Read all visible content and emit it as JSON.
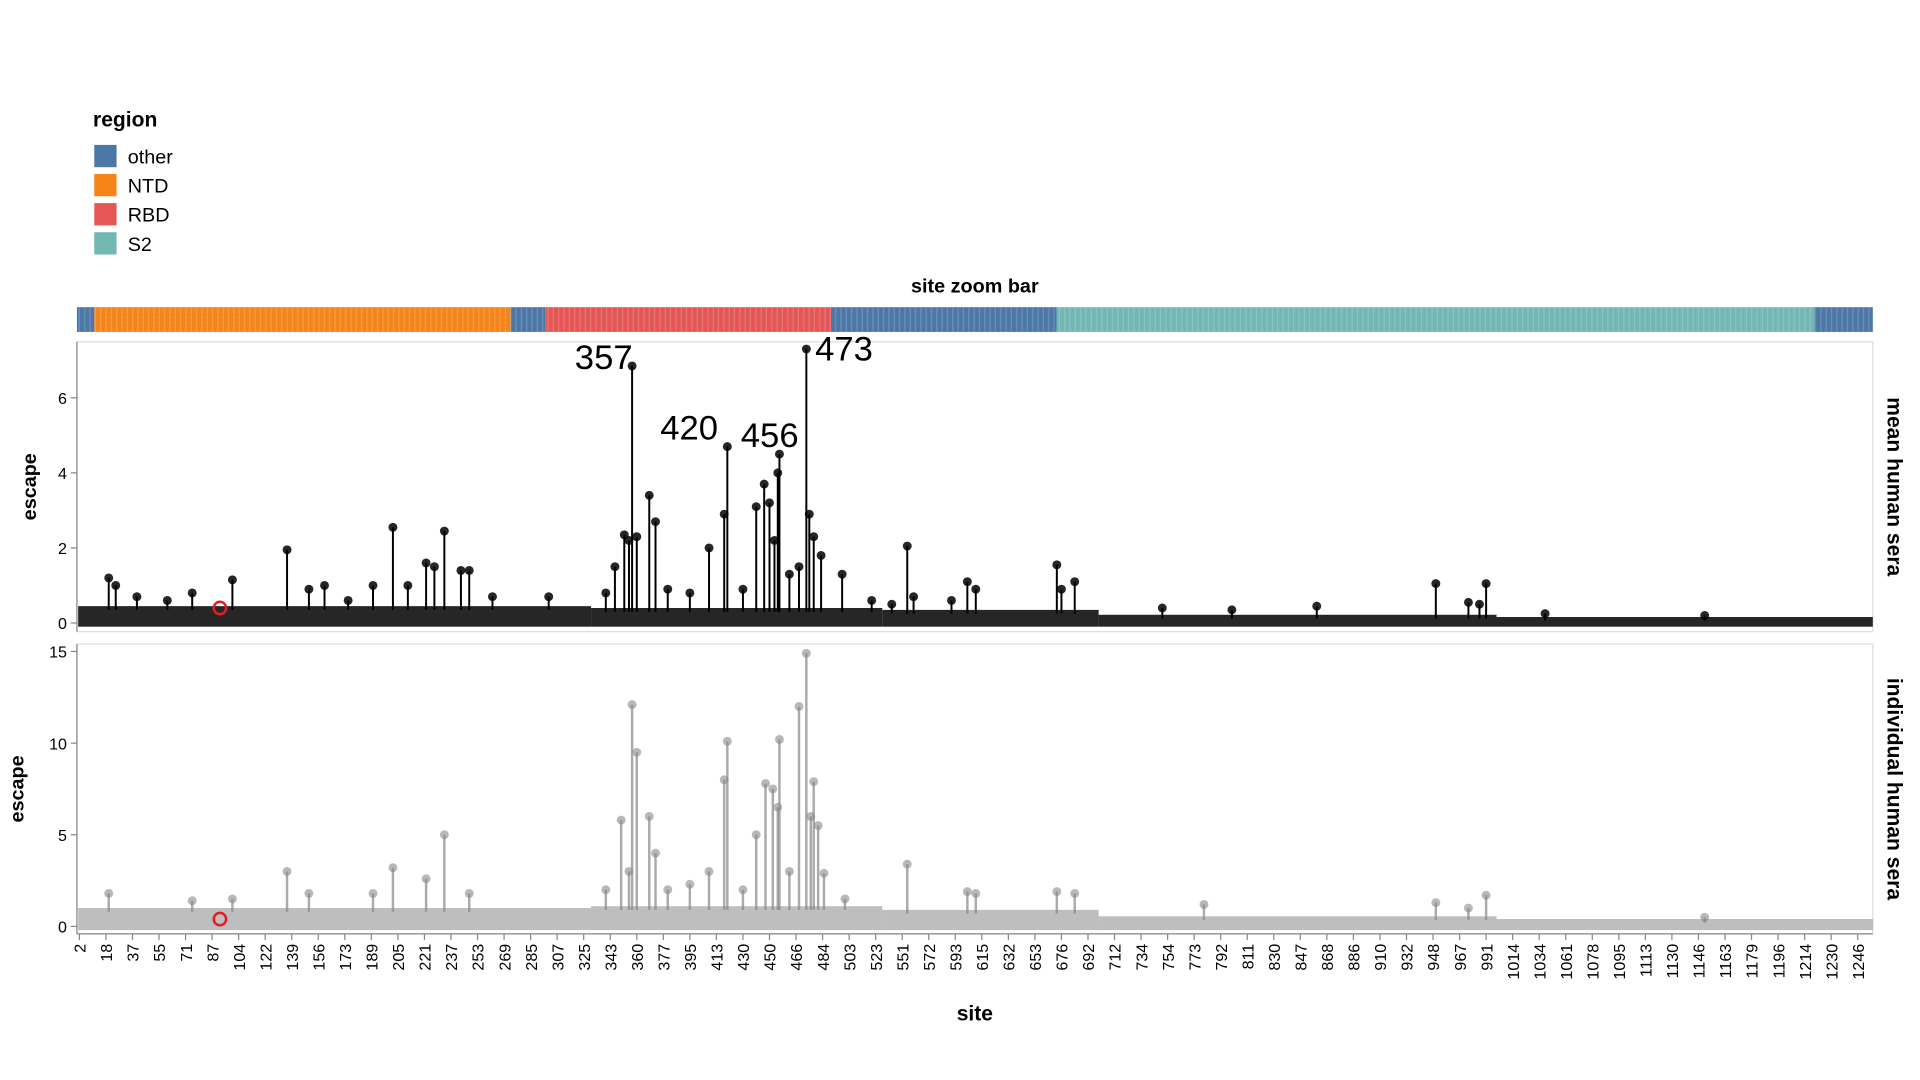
{
  "legend": {
    "title": "region",
    "items": [
      {
        "label": "other",
        "color": "#4c78a8"
      },
      {
        "label": "NTD",
        "color": "#f58518"
      },
      {
        "label": "RBD",
        "color": "#e45756"
      },
      {
        "label": "S2",
        "color": "#72b7b2"
      }
    ]
  },
  "zoom_bar": {
    "title": "site zoom bar",
    "regions": [
      {
        "region": "other",
        "from": 2,
        "to": 11
      },
      {
        "region": "NTD",
        "from": 11,
        "to": 273
      },
      {
        "region": "other",
        "from": 273,
        "to": 297
      },
      {
        "region": "RBD",
        "from": 297,
        "to": 490
      },
      {
        "region": "other",
        "from": 490,
        "to": 672
      },
      {
        "region": "S2",
        "from": 672,
        "to": 1220
      },
      {
        "region": "other",
        "from": 1220,
        "to": 1273
      }
    ]
  },
  "chart_data": [
    {
      "type": "line",
      "facet_label": "mean human sera",
      "xlabel": "site",
      "ylabel": "escape",
      "ylim": [
        0,
        7.5
      ],
      "y_ticks": [
        0,
        2,
        4,
        6
      ],
      "grid": false,
      "color": "#000000",
      "highlighted_site": {
        "site": 92,
        "value": 0.4,
        "color": "#e02020"
      },
      "annotations": [
        "357",
        "420",
        "456",
        "473"
      ],
      "baseline": [
        {
          "from": 2,
          "to": 330,
          "level": 0.35
        },
        {
          "from": 330,
          "to": 530,
          "level": 0.3
        },
        {
          "from": 530,
          "to": 700,
          "level": 0.25
        },
        {
          "from": 700,
          "to": 1000,
          "level": 0.12
        },
        {
          "from": 1000,
          "to": 1273,
          "level": 0.06
        }
      ],
      "points": [
        [
          20,
          1.2
        ],
        [
          25,
          1.0
        ],
        [
          40,
          0.7
        ],
        [
          60,
          0.6
        ],
        [
          75,
          0.8
        ],
        [
          100,
          1.15
        ],
        [
          136,
          1.95
        ],
        [
          150,
          0.9
        ],
        [
          160,
          1.0
        ],
        [
          175,
          0.6
        ],
        [
          190,
          1.0
        ],
        [
          202,
          2.55
        ],
        [
          211,
          1.0
        ],
        [
          222,
          1.6
        ],
        [
          227,
          1.5
        ],
        [
          233,
          2.45
        ],
        [
          243,
          1.4
        ],
        [
          248,
          1.4
        ],
        [
          262,
          0.7
        ],
        [
          300,
          0.7
        ],
        [
          340,
          0.8
        ],
        [
          346,
          1.5
        ],
        [
          352,
          2.35
        ],
        [
          355,
          2.2
        ],
        [
          357,
          6.85
        ],
        [
          360,
          2.3
        ],
        [
          368,
          3.4
        ],
        [
          372,
          2.7
        ],
        [
          380,
          0.9
        ],
        [
          395,
          0.8
        ],
        [
          408,
          2.0
        ],
        [
          418,
          2.9
        ],
        [
          420,
          4.7
        ],
        [
          430,
          0.9
        ],
        [
          440,
          3.1
        ],
        [
          446,
          3.7
        ],
        [
          450,
          3.2
        ],
        [
          453,
          2.2
        ],
        [
          455,
          4.0
        ],
        [
          456,
          4.5
        ],
        [
          462,
          1.3
        ],
        [
          468,
          1.5
        ],
        [
          473,
          7.3
        ],
        [
          475,
          2.9
        ],
        [
          478,
          2.3
        ],
        [
          483,
          1.8
        ],
        [
          498,
          1.3
        ],
        [
          520,
          0.6
        ],
        [
          540,
          0.5
        ],
        [
          555,
          2.05
        ],
        [
          560,
          0.7
        ],
        [
          590,
          0.6
        ],
        [
          603,
          1.1
        ],
        [
          610,
          0.9
        ],
        [
          672,
          1.55
        ],
        [
          676,
          0.9
        ],
        [
          684,
          1.1
        ],
        [
          750,
          0.4
        ],
        [
          800,
          0.35
        ],
        [
          860,
          0.45
        ],
        [
          950,
          1.05
        ],
        [
          975,
          0.55
        ],
        [
          985,
          0.5
        ],
        [
          991,
          1.05
        ],
        [
          1040,
          0.25
        ],
        [
          1150,
          0.2
        ]
      ]
    },
    {
      "type": "line",
      "facet_label": "individual human sera",
      "xlabel": "site",
      "ylabel": "escape",
      "ylim": [
        0,
        15.4
      ],
      "y_ticks": [
        0,
        5,
        10,
        15
      ],
      "grid": false,
      "color": "#888888",
      "highlighted_site": {
        "site": 92,
        "value": 0.4,
        "color": "#e02020"
      },
      "baseline": [
        {
          "from": 2,
          "to": 330,
          "level": 0.8
        },
        {
          "from": 330,
          "to": 530,
          "level": 0.9
        },
        {
          "from": 530,
          "to": 700,
          "level": 0.7
        },
        {
          "from": 700,
          "to": 1000,
          "level": 0.35
        },
        {
          "from": 1000,
          "to": 1273,
          "level": 0.2
        }
      ],
      "points": [
        [
          20,
          1.8
        ],
        [
          75,
          1.4
        ],
        [
          100,
          1.5
        ],
        [
          136,
          3.0
        ],
        [
          150,
          1.8
        ],
        [
          190,
          1.8
        ],
        [
          202,
          3.2
        ],
        [
          222,
          2.6
        ],
        [
          233,
          5.0
        ],
        [
          248,
          1.8
        ],
        [
          340,
          2.0
        ],
        [
          350,
          5.8
        ],
        [
          355,
          3.0
        ],
        [
          357,
          12.1
        ],
        [
          360,
          9.5
        ],
        [
          368,
          6.0
        ],
        [
          372,
          4.0
        ],
        [
          380,
          2.0
        ],
        [
          395,
          2.3
        ],
        [
          408,
          3.0
        ],
        [
          420,
          10.1
        ],
        [
          418,
          8.0
        ],
        [
          430,
          2.0
        ],
        [
          440,
          5.0
        ],
        [
          447,
          7.8
        ],
        [
          452,
          7.5
        ],
        [
          455,
          6.5
        ],
        [
          456,
          10.2
        ],
        [
          462,
          3.0
        ],
        [
          468,
          12.0
        ],
        [
          473,
          14.9
        ],
        [
          476,
          6.0
        ],
        [
          478,
          7.9
        ],
        [
          481,
          5.5
        ],
        [
          485,
          2.9
        ],
        [
          500,
          1.5
        ],
        [
          555,
          3.4
        ],
        [
          603,
          1.9
        ],
        [
          610,
          1.8
        ],
        [
          672,
          1.9
        ],
        [
          684,
          1.8
        ],
        [
          780,
          1.2
        ],
        [
          950,
          1.3
        ],
        [
          975,
          1.0
        ],
        [
          991,
          1.7
        ],
        [
          1150,
          0.5
        ]
      ]
    }
  ],
  "x_axis": {
    "title": "site",
    "tick_labels": [
      2,
      18,
      37,
      55,
      71,
      87,
      104,
      122,
      139,
      156,
      173,
      189,
      205,
      221,
      237,
      253,
      269,
      285,
      307,
      325,
      343,
      360,
      377,
      395,
      413,
      430,
      450,
      466,
      484,
      503,
      523,
      551,
      572,
      593,
      615,
      632,
      653,
      676,
      692,
      712,
      734,
      754,
      773,
      792,
      811,
      830,
      847,
      868,
      886,
      910,
      932,
      948,
      967,
      991,
      1014,
      1034,
      1061,
      1078,
      1095,
      1113,
      1130,
      1146,
      1163,
      1179,
      1196,
      1214,
      1230,
      1246
    ]
  }
}
